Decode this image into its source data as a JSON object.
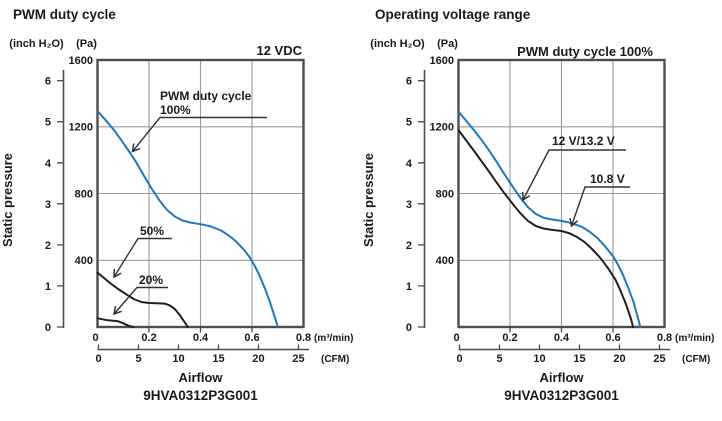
{
  "colors": {
    "curve_blue": "#1f77bd",
    "curve_black": "#231f20",
    "grid": "#9a9a9a",
    "frame": "#4d4d4d",
    "leader": "#333333",
    "text": "#1a1a1a"
  },
  "charts": [
    {
      "title": "PWM duty cycle",
      "corner_label": "12 VDC",
      "y_axis": {
        "label": "Static pressure",
        "unit_left": "(inch H₂O)",
        "unit_right": "(Pa)",
        "pa_ticks": [
          "1600",
          "1200",
          "800",
          "400"
        ],
        "inch_ticks": [
          "6",
          "5",
          "4",
          "3",
          "2",
          "1",
          "0"
        ]
      },
      "x_axis": {
        "label": "Airflow",
        "unit_primary": "(m³/min)",
        "unit_secondary": "(CFM)",
        "primary_ticks": [
          "0",
          "0.2",
          "0.4",
          "0.6",
          "0.8"
        ],
        "secondary_ticks": [
          "0",
          "5",
          "10",
          "15",
          "20",
          "25"
        ]
      },
      "model": "9HVA0312P3G001",
      "callouts": {
        "c100_line1": "PWM duty cycle",
        "c100_line2": "100%",
        "c50": "50%",
        "c20": "20%"
      }
    },
    {
      "title": "Operating voltage range",
      "corner_label": "PWM duty cycle 100%",
      "y_axis": {
        "label": "Static pressure",
        "unit_left": "(inch H₂O)",
        "unit_right": "(Pa)",
        "pa_ticks": [
          "1600",
          "1200",
          "800",
          "400"
        ],
        "inch_ticks": [
          "6",
          "5",
          "4",
          "3",
          "2",
          "1",
          "0"
        ]
      },
      "x_axis": {
        "label": "Airflow",
        "unit_primary": "(m³/min)",
        "unit_secondary": "(CFM)",
        "primary_ticks": [
          "0",
          "0.2",
          "0.4",
          "0.6",
          "0.8"
        ],
        "secondary_ticks": [
          "0",
          "5",
          "10",
          "15",
          "20",
          "25"
        ]
      },
      "model": "9HVA0312P3G001",
      "callouts": {
        "v12": "12 V/13.2 V",
        "v108": "10.8 V"
      }
    }
  ],
  "chart_data": [
    {
      "type": "line",
      "title": "PWM duty cycle",
      "condition": "12 VDC",
      "xlabel": "Airflow",
      "x_units": [
        "m³/min",
        "CFM"
      ],
      "ylabel": "Static pressure",
      "y_units": [
        "inch H₂O",
        "Pa"
      ],
      "xlim": [
        0,
        0.8
      ],
      "ylim": [
        0,
        1600
      ],
      "x_ticks_m3min": [
        0,
        0.2,
        0.4,
        0.6,
        0.8
      ],
      "x_ticks_cfm": [
        0,
        5,
        10,
        15,
        20,
        25
      ],
      "y_ticks_pa": [
        400,
        800,
        1200,
        1600
      ],
      "y_ticks_inch": [
        0,
        1,
        2,
        3,
        4,
        5,
        6
      ],
      "grid": true,
      "model": "9HVA0312P3G001",
      "series": [
        {
          "name": "PWM duty cycle 100%",
          "color": "#1f77bd",
          "points": [
            [
              0,
              1295
            ],
            [
              0.03,
              1242
            ],
            [
              0.06,
              1188
            ],
            [
              0.09,
              1125
            ],
            [
              0.12,
              1058
            ],
            [
              0.15,
              988
            ],
            [
              0.18,
              908
            ],
            [
              0.21,
              830
            ],
            [
              0.24,
              760
            ],
            [
              0.27,
              702
            ],
            [
              0.3,
              662
            ],
            [
              0.33,
              638
            ],
            [
              0.36,
              626
            ],
            [
              0.4,
              616
            ],
            [
              0.44,
              603
            ],
            [
              0.48,
              578
            ],
            [
              0.51,
              548
            ],
            [
              0.54,
              510
            ],
            [
              0.57,
              460
            ],
            [
              0.59,
              420
            ],
            [
              0.61,
              368
            ],
            [
              0.63,
              305
            ],
            [
              0.65,
              232
            ],
            [
              0.67,
              148
            ],
            [
              0.69,
              52
            ],
            [
              0.7,
              0
            ]
          ]
        },
        {
          "name": "50%",
          "color": "#231f20",
          "points": [
            [
              0,
              325
            ],
            [
              0.02,
              300
            ],
            [
              0.05,
              262
            ],
            [
              0.08,
              228
            ],
            [
              0.11,
              198
            ],
            [
              0.14,
              168
            ],
            [
              0.17,
              150
            ],
            [
              0.2,
              144
            ],
            [
              0.23,
              142
            ],
            [
              0.26,
              140
            ],
            [
              0.28,
              130
            ],
            [
              0.3,
              108
            ],
            [
              0.32,
              70
            ],
            [
              0.34,
              25
            ],
            [
              0.35,
              0
            ]
          ]
        },
        {
          "name": "20%",
          "color": "#231f20",
          "points": [
            [
              0,
              52
            ],
            [
              0.02,
              46
            ],
            [
              0.04,
              40
            ],
            [
              0.06,
              38
            ],
            [
              0.08,
              34
            ],
            [
              0.1,
              22
            ],
            [
              0.12,
              8
            ],
            [
              0.14,
              0
            ]
          ]
        }
      ]
    },
    {
      "type": "line",
      "title": "Operating voltage range",
      "condition": "PWM duty cycle 100%",
      "xlabel": "Airflow",
      "x_units": [
        "m³/min",
        "CFM"
      ],
      "ylabel": "Static pressure",
      "y_units": [
        "inch H₂O",
        "Pa"
      ],
      "xlim": [
        0,
        0.8
      ],
      "ylim": [
        0,
        1600
      ],
      "x_ticks_m3min": [
        0,
        0.2,
        0.4,
        0.6,
        0.8
      ],
      "x_ticks_cfm": [
        0,
        5,
        10,
        15,
        20,
        25
      ],
      "y_ticks_pa": [
        400,
        800,
        1200,
        1600
      ],
      "y_ticks_inch": [
        0,
        1,
        2,
        3,
        4,
        5,
        6
      ],
      "grid": true,
      "model": "9HVA0312P3G001",
      "series": [
        {
          "name": "12 V/13.2 V",
          "color": "#1f77bd",
          "points": [
            [
              0,
              1290
            ],
            [
              0.03,
              1235
            ],
            [
              0.06,
              1180
            ],
            [
              0.09,
              1120
            ],
            [
              0.12,
              1055
            ],
            [
              0.15,
              985
            ],
            [
              0.18,
              912
            ],
            [
              0.21,
              842
            ],
            [
              0.24,
              775
            ],
            [
              0.27,
              718
            ],
            [
              0.3,
              678
            ],
            [
              0.33,
              655
            ],
            [
              0.36,
              645
            ],
            [
              0.4,
              636
            ],
            [
              0.44,
              622
            ],
            [
              0.48,
              600
            ],
            [
              0.51,
              570
            ],
            [
              0.54,
              532
            ],
            [
              0.57,
              482
            ],
            [
              0.6,
              425
            ],
            [
              0.62,
              372
            ],
            [
              0.64,
              308
            ],
            [
              0.66,
              232
            ],
            [
              0.68,
              148
            ],
            [
              0.7,
              35
            ],
            [
              0.706,
              0
            ]
          ]
        },
        {
          "name": "10.8 V",
          "color": "#231f20",
          "points": [
            [
              0,
              1180
            ],
            [
              0.03,
              1118
            ],
            [
              0.06,
              1055
            ],
            [
              0.09,
              992
            ],
            [
              0.12,
              928
            ],
            [
              0.15,
              862
            ],
            [
              0.18,
              798
            ],
            [
              0.21,
              738
            ],
            [
              0.24,
              682
            ],
            [
              0.27,
              636
            ],
            [
              0.3,
              605
            ],
            [
              0.33,
              590
            ],
            [
              0.36,
              583
            ],
            [
              0.4,
              575
            ],
            [
              0.43,
              562
            ],
            [
              0.46,
              540
            ],
            [
              0.49,
              508
            ],
            [
              0.52,
              465
            ],
            [
              0.55,
              415
            ],
            [
              0.58,
              355
            ],
            [
              0.61,
              282
            ],
            [
              0.63,
              215
            ],
            [
              0.65,
              138
            ],
            [
              0.67,
              48
            ],
            [
              0.678,
              0
            ]
          ]
        }
      ]
    }
  ]
}
